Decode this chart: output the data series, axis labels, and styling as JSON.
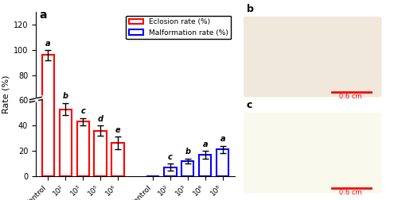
{
  "eclosion_labels": [
    "Control",
    "10²",
    "10³",
    "10⁵",
    "10⁶"
  ],
  "eclosion_values": [
    96,
    53,
    43,
    36,
    26
  ],
  "eclosion_errors": [
    4,
    5,
    3,
    4,
    5
  ],
  "eclosion_letters": [
    "a",
    "b",
    "c",
    "d",
    "e"
  ],
  "malform_labels": [
    "Control",
    "10²",
    "10³",
    "10⁶",
    "10⁸"
  ],
  "malform_values": [
    0,
    7,
    12,
    17,
    21
  ],
  "malform_errors": [
    0,
    3,
    2,
    3,
    3
  ],
  "malform_letters": [
    "",
    "c",
    "b",
    "a",
    "a"
  ],
  "eclosion_color": "#FF0000",
  "malform_color": "#0000FF",
  "ylabel": "Rate (%)",
  "ylim": [
    0,
    130
  ],
  "yticks": [
    0,
    20,
    40,
    60,
    80,
    100,
    120
  ],
  "panel_label": "a",
  "bar_width": 0.7,
  "figsize": [
    5.0,
    2.52
  ],
  "dpi": 100
}
